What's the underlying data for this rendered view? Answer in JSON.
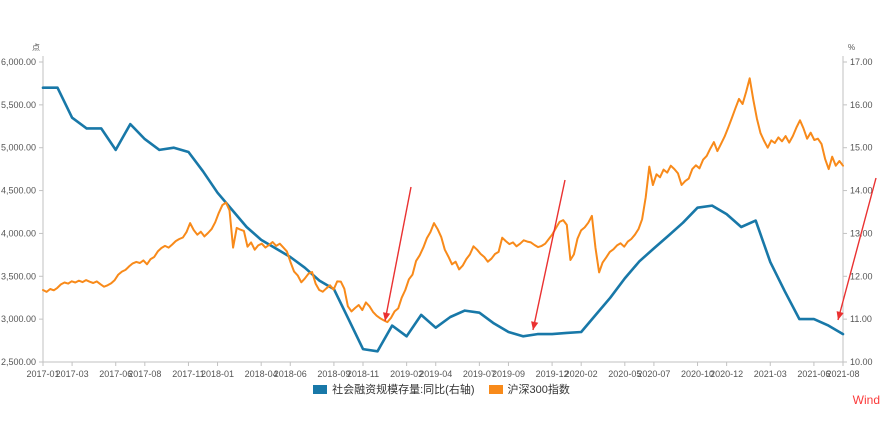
{
  "watermark": {
    "label": "Wind",
    "color": "#fb3a3a"
  },
  "legend": {
    "items": [
      {
        "label": "社会融资规模存量:同比(右轴)",
        "color": "#1878a8"
      },
      {
        "label": "沪深300指数",
        "color": "#f88a1a"
      }
    ]
  },
  "chart_data": {
    "type": "line",
    "title": "",
    "grid": false,
    "legend_position": "bottom-center",
    "left_axis": {
      "unit": "点",
      "min": 2500,
      "max": 6000,
      "tick_labels": [
        "6,000.00",
        "5,500.00",
        "5,000.00",
        "4,500.00",
        "4,000.00",
        "3,500.00",
        "3,000.00",
        "2,500.00"
      ],
      "tick_values": [
        6000,
        5500,
        5000,
        4500,
        4000,
        3500,
        3000,
        2500
      ]
    },
    "right_axis": {
      "unit": "%",
      "min": 10,
      "max": 17,
      "tick_labels": [
        "17.00",
        "16.00",
        "15.00",
        "14.00",
        "13.00",
        "12.00",
        "11.00",
        "10.00"
      ],
      "tick_values": [
        17,
        16,
        15,
        14,
        13,
        12,
        11,
        10
      ]
    },
    "x_axis": {
      "start_month": "2017-01",
      "end_month": "2021-08",
      "months_total": 56,
      "tick_labels": [
        "2017-01",
        "2017-03",
        "2017-06",
        "2017-08",
        "2017-11",
        "2018-01",
        "2018-04",
        "2018-06",
        "2018-09",
        "2018-11",
        "2019-02",
        "2019-04",
        "2019-07",
        "2019-09",
        "2019-12",
        "2020-02",
        "2020-05",
        "2020-07",
        "2020-10",
        "2020-12",
        "2021-03",
        "2021-06",
        "2021-08"
      ],
      "tick_month_indices": [
        0,
        2,
        5,
        7,
        10,
        12,
        15,
        17,
        20,
        22,
        25,
        27,
        30,
        32,
        35,
        37,
        40,
        42,
        45,
        47,
        50,
        53,
        55
      ]
    },
    "series": [
      {
        "name": "社会融资规模存量:同比(右轴)",
        "axis": "right",
        "color": "#1878a8",
        "width": 2.6,
        "frequency": "monthly",
        "values": [
          16.4,
          16.4,
          15.7,
          15.45,
          15.45,
          14.95,
          15.55,
          15.2,
          14.95,
          15.0,
          14.9,
          14.45,
          13.95,
          13.55,
          13.15,
          12.85,
          12.65,
          12.45,
          12.2,
          11.9,
          11.7,
          11.0,
          10.3,
          10.25,
          10.85,
          10.6,
          11.1,
          10.8,
          11.05,
          11.2,
          11.15,
          10.9,
          10.7,
          10.6,
          10.65,
          10.65,
          10.68,
          10.7,
          11.1,
          11.5,
          11.95,
          12.35,
          12.65,
          12.95,
          13.25,
          13.6,
          13.65,
          13.45,
          13.15,
          13.3,
          12.33,
          11.65,
          11.0,
          11.0,
          10.85,
          10.65
        ]
      },
      {
        "name": "沪深300指数",
        "axis": "left",
        "color": "#f88a1a",
        "width": 2.0,
        "frequency": "4-per-month",
        "values": [
          3340,
          3318,
          3352,
          3336,
          3365,
          3405,
          3428,
          3415,
          3442,
          3428,
          3448,
          3432,
          3455,
          3437,
          3422,
          3440,
          3408,
          3378,
          3395,
          3418,
          3455,
          3520,
          3555,
          3575,
          3615,
          3650,
          3668,
          3655,
          3685,
          3640,
          3700,
          3725,
          3790,
          3830,
          3855,
          3835,
          3870,
          3910,
          3935,
          3952,
          4015,
          4120,
          4040,
          3985,
          4020,
          3965,
          4005,
          4050,
          4130,
          4240,
          4330,
          4360,
          4270,
          3835,
          4065,
          4045,
          4030,
          3845,
          3895,
          3810,
          3860,
          3880,
          3835,
          3865,
          3900,
          3855,
          3880,
          3835,
          3790,
          3665,
          3555,
          3510,
          3430,
          3475,
          3530,
          3550,
          3415,
          3340,
          3320,
          3360,
          3395,
          3345,
          3440,
          3438,
          3355,
          3150,
          3090,
          3130,
          3165,
          3105,
          3195,
          3150,
          3085,
          3040,
          3010,
          2985,
          2965,
          3015,
          3090,
          3125,
          3250,
          3340,
          3465,
          3520,
          3680,
          3745,
          3835,
          3945,
          4015,
          4120,
          4050,
          3960,
          3810,
          3730,
          3640,
          3670,
          3580,
          3625,
          3700,
          3755,
          3850,
          3810,
          3760,
          3725,
          3670,
          3705,
          3760,
          3785,
          3950,
          3910,
          3875,
          3895,
          3850,
          3880,
          3920,
          3905,
          3895,
          3865,
          3840,
          3855,
          3880,
          3935,
          3990,
          4065,
          4135,
          4155,
          4100,
          3690,
          3755,
          3940,
          4035,
          4070,
          4125,
          4205,
          3830,
          3545,
          3660,
          3720,
          3785,
          3815,
          3860,
          3885,
          3845,
          3905,
          3935,
          3985,
          4050,
          4165,
          4420,
          4780,
          4565,
          4690,
          4655,
          4745,
          4710,
          4790,
          4750,
          4700,
          4565,
          4610,
          4640,
          4750,
          4795,
          4760,
          4860,
          4905,
          4990,
          5065,
          4960,
          5045,
          5130,
          5235,
          5345,
          5460,
          5570,
          5510,
          5650,
          5810,
          5560,
          5340,
          5170,
          5080,
          5000,
          5085,
          5055,
          5120,
          5075,
          5135,
          5060,
          5135,
          5235,
          5320,
          5225,
          5105,
          5175,
          5090,
          5105,
          5045,
          4870,
          4750,
          4895,
          4790,
          4845,
          4790
        ]
      }
    ],
    "annotations": {
      "color": "#ea3131",
      "arrows": [
        {
          "from": [
            411,
            187
          ],
          "to": [
            385,
            321
          ]
        },
        {
          "from": [
            565,
            180
          ],
          "to": [
            533,
            330
          ]
        },
        {
          "from": [
            876,
            178
          ],
          "to": [
            838,
            320
          ]
        }
      ]
    }
  }
}
